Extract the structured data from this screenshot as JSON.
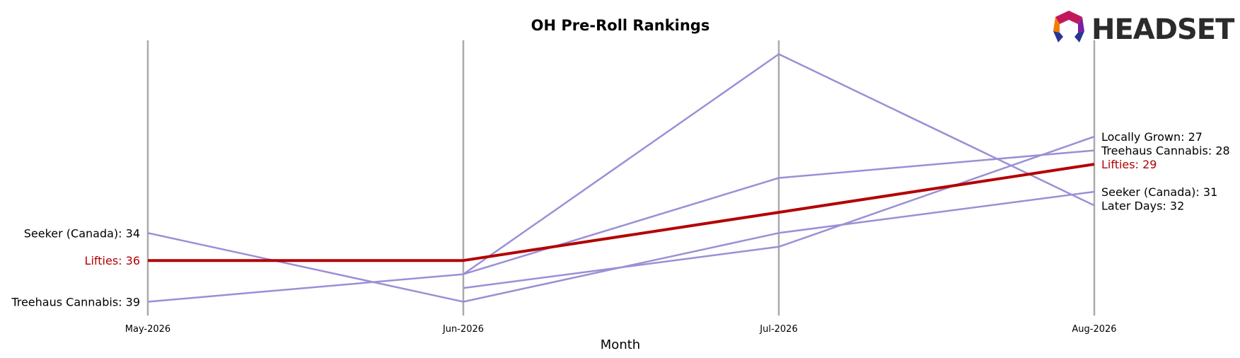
{
  "logo": {
    "text": "HEADSET"
  },
  "colors": {
    "highlight": "#b30000",
    "other": "#9b8fd6",
    "axis_line": "#aaaaaa",
    "text": "#000000"
  },
  "chart_data": {
    "type": "line",
    "title": "OH Pre-Roll Rankings",
    "xlabel": "Month",
    "ylabel": "",
    "categories": [
      "May-2026",
      "Jun-2026",
      "Jul-2026",
      "Aug-2026"
    ],
    "y_inverted": true,
    "ylim": [
      20,
      40
    ],
    "grid": false,
    "highlight_series": "Lifties",
    "series": [
      {
        "name": "Lifties",
        "values": [
          36,
          36,
          32.5,
          29
        ]
      },
      {
        "name": "Seeker (Canada)",
        "values": [
          34,
          39,
          34,
          31
        ]
      },
      {
        "name": "Treehaus Cannabis",
        "values": [
          39,
          37,
          30,
          28
        ]
      },
      {
        "name": "Locally Grown",
        "values": [
          null,
          38,
          35,
          27
        ]
      },
      {
        "name": "Later Days",
        "values": [
          null,
          37,
          21,
          32
        ]
      }
    ],
    "left_labels": [
      {
        "series": "Seeker (Canada)",
        "text": "Seeker (Canada): 34"
      },
      {
        "series": "Lifties",
        "text": "Lifties: 36"
      },
      {
        "series": "Treehaus Cannabis",
        "text": "Treehaus Cannabis: 39"
      }
    ],
    "right_labels": [
      {
        "series": "Locally Grown",
        "text": "Locally Grown: 27"
      },
      {
        "series": "Treehaus Cannabis",
        "text": "Treehaus Cannabis: 28"
      },
      {
        "series": "Lifties",
        "text": "Lifties: 29"
      },
      {
        "series": "Seeker (Canada)",
        "text": "Seeker (Canada): 31"
      },
      {
        "series": "Later Days",
        "text": "Later Days: 32"
      }
    ]
  }
}
